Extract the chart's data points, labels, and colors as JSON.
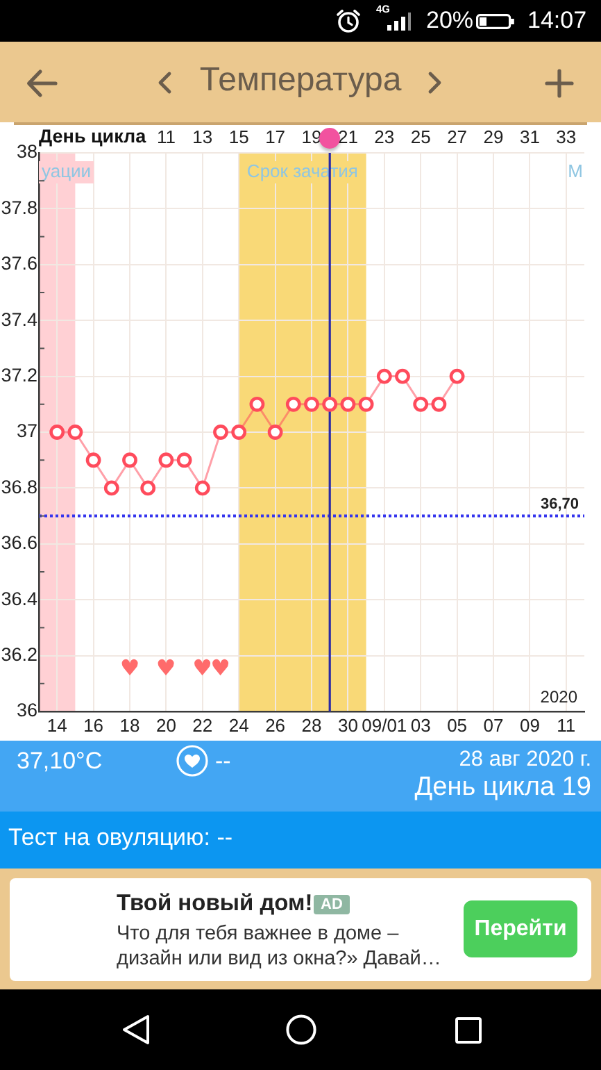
{
  "chart_data": {
    "type": "line",
    "title": "Температура",
    "x2label": "День цикла",
    "x": [
      "2020-08-14",
      "2020-08-15",
      "2020-08-16",
      "2020-08-17",
      "2020-08-18",
      "2020-08-19",
      "2020-08-20",
      "2020-08-21",
      "2020-08-22",
      "2020-08-23",
      "2020-08-24",
      "2020-08-25",
      "2020-08-26",
      "2020-08-27",
      "2020-08-28",
      "2020-08-29",
      "2020-08-30",
      "2020-08-31",
      "2020-09-01",
      "2020-09-02",
      "2020-09-03",
      "2020-09-04",
      "2020-09-05"
    ],
    "series": [
      {
        "color": "#ff4b5c",
        "values": [
          37.0,
          37.0,
          36.9,
          36.8,
          36.9,
          36.8,
          36.9,
          36.9,
          36.8,
          37.0,
          37.0,
          37.1,
          37.0,
          37.1,
          37.1,
          37.1,
          37.1,
          37.1,
          37.2,
          37.2,
          37.1,
          37.1,
          37.2
        ]
      }
    ],
    "xlim": [
      "2020-08-13",
      "2020-09-12"
    ],
    "xticks": [
      {
        "value": "2020-08-14",
        "label": "14"
      },
      {
        "value": "2020-08-16",
        "label": "16"
      },
      {
        "value": "2020-08-18",
        "label": "18"
      },
      {
        "value": "2020-08-20",
        "label": "20"
      },
      {
        "value": "2020-08-22",
        "label": "22"
      },
      {
        "value": "2020-08-24",
        "label": "24"
      },
      {
        "value": "2020-08-26",
        "label": "26"
      },
      {
        "value": "2020-08-28",
        "label": "28"
      },
      {
        "value": "2020-08-30",
        "label": "30"
      },
      {
        "value": "2020-09-01",
        "label": "09/01"
      },
      {
        "value": "2020-09-03",
        "label": "03"
      },
      {
        "value": "2020-09-05",
        "label": "05"
      },
      {
        "value": "2020-09-07",
        "label": "07"
      },
      {
        "value": "2020-09-09",
        "label": "09"
      },
      {
        "value": "2020-09-11",
        "label": "11"
      }
    ],
    "x2lim": [
      4,
      34
    ],
    "x2ticks": [
      11,
      13,
      15,
      17,
      19,
      21,
      23,
      25,
      27,
      29,
      31,
      33
    ],
    "ylim": [
      36,
      38
    ],
    "yticks": [
      36,
      {
        "value": 36.1,
        "label": null
      },
      36.2,
      {
        "value": 36.3,
        "label": null
      },
      36.4,
      {
        "value": 36.5,
        "label": null
      },
      36.6,
      {
        "value": 36.7,
        "label": null
      },
      36.8,
      {
        "value": 36.9,
        "label": null
      },
      37,
      {
        "value": 37.1,
        "label": null
      },
      37.2,
      {
        "value": 37.3,
        "label": null
      },
      37.4,
      {
        "value": 37.5,
        "label": null
      },
      37.6,
      {
        "value": 37.7,
        "label": null
      },
      37.8,
      {
        "value": 37.9,
        "label": null
      },
      38
    ],
    "grid": true,
    "marker": "circle",
    "ref_lines": [
      {
        "axis": "y",
        "value": 36.7,
        "label": "36,70",
        "color": "#3434ee",
        "line_style": "dotted"
      },
      {
        "axis": "x",
        "value": "2020-08-29",
        "color": "#2a2aa6"
      }
    ],
    "bands": [
      {
        "axis": "x",
        "from": "2020-08-13",
        "to": "2020-08-15",
        "label": "уации",
        "color": "#ffd0d4"
      },
      {
        "axis": "x",
        "from": "2020-08-24",
        "to": "2020-08-31",
        "label": "Срок зачатия",
        "color": "#f9d977"
      }
    ],
    "annotations": [
      "2020",
      "М",
      "4G",
      "20%",
      "14:07",
      "37,10°C",
      "--",
      "28 авг 2020 г.",
      "День цикла 19",
      "Тест на овуляцию: --",
      "Твой новый дом!",
      "AD",
      "Что для тебя важнее в доме – дизайн или вид из окна?» Давай…",
      "Перейти",
      "♥",
      "♥",
      "♥",
      "♥"
    ]
  }
}
